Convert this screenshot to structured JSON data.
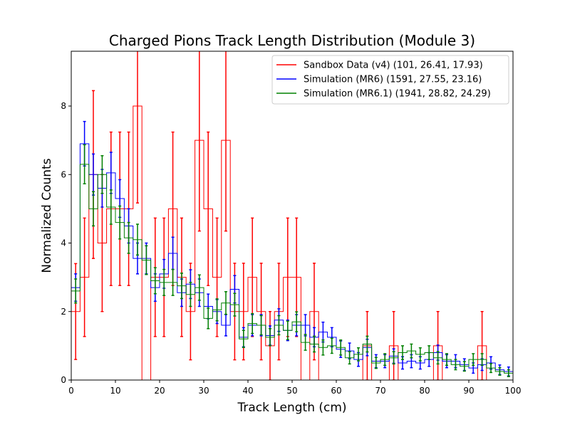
{
  "chart_data": {
    "type": "histogram",
    "title": "Charged Pions Track Length Distribution (Module 3)",
    "xlabel": "Track Length (cm)",
    "ylabel": "Normalized Counts",
    "xlim": [
      0,
      100
    ],
    "ylim": [
      0,
      9.6
    ],
    "x_ticks": [
      "0",
      "10",
      "20",
      "30",
      "40",
      "50",
      "60",
      "70",
      "80",
      "90",
      "100"
    ],
    "y_ticks": [
      "0",
      "2",
      "4",
      "6",
      "8"
    ],
    "grid": false,
    "legend_position": "top-right",
    "bin_edges": [
      0,
      2,
      4,
      6,
      8,
      10,
      12,
      14,
      16,
      18,
      20,
      22,
      24,
      26,
      28,
      30,
      32,
      34,
      36,
      38,
      40,
      42,
      44,
      46,
      48,
      50,
      52,
      54,
      56,
      58,
      60,
      62,
      64,
      66,
      68,
      70,
      72,
      74,
      76,
      78,
      80,
      82,
      84,
      86,
      88,
      90,
      92,
      94,
      96,
      98,
      100
    ],
    "series": [
      {
        "name": "Sandbox Data (v4) (101, 26.41, 17.93)",
        "color": "#ff0000",
        "values": [
          2,
          3,
          6,
          4,
          5,
          5,
          5,
          8,
          0,
          3,
          3,
          5,
          3,
          2,
          7,
          5,
          3,
          7,
          2,
          2,
          3,
          2,
          1,
          2,
          3,
          3,
          0,
          2,
          0,
          0,
          0,
          0,
          0,
          1,
          0,
          0,
          1,
          0,
          0,
          0,
          0,
          1,
          0,
          0,
          0,
          0,
          1,
          0,
          0,
          0
        ],
        "errors": [
          1.4,
          1.73,
          2.45,
          2.0,
          2.24,
          2.24,
          2.24,
          2.83,
          0,
          1.73,
          1.73,
          2.24,
          1.73,
          1.41,
          2.65,
          2.24,
          1.73,
          2.65,
          1.41,
          1.41,
          1.73,
          1.41,
          1.0,
          1.41,
          1.73,
          1.73,
          0,
          1.41,
          0,
          0,
          0,
          0,
          0,
          1.0,
          0,
          0,
          1.0,
          0,
          0,
          0,
          0,
          1.0,
          0,
          0,
          0,
          0,
          1.0,
          0,
          0,
          0
        ]
      },
      {
        "name": "Simulation (MR6) (1591, 27.55, 23.16)",
        "color": "#0000ff",
        "values": [
          2.7,
          6.9,
          6.0,
          5.6,
          6.05,
          5.3,
          4.5,
          3.55,
          3.55,
          2.7,
          3.1,
          3.7,
          2.55,
          2.8,
          2.55,
          2.15,
          2.0,
          1.6,
          2.65,
          1.25,
          1.6,
          1.6,
          1.3,
          1.75,
          1.45,
          1.6,
          1.6,
          1.25,
          1.4,
          1.25,
          0.9,
          0.85,
          0.6,
          0.95,
          0.55,
          0.55,
          0.7,
          0.5,
          0.55,
          0.5,
          0.6,
          0.8,
          0.55,
          0.55,
          0.45,
          0.35,
          0.45,
          0.5,
          0.3,
          0.25
        ],
        "errors": [
          0.4,
          0.65,
          0.6,
          0.55,
          0.6,
          0.55,
          0.5,
          0.45,
          0.45,
          0.4,
          0.42,
          0.47,
          0.4,
          0.42,
          0.4,
          0.36,
          0.35,
          0.31,
          0.4,
          0.28,
          0.31,
          0.31,
          0.28,
          0.33,
          0.3,
          0.31,
          0.31,
          0.28,
          0.29,
          0.28,
          0.24,
          0.23,
          0.2,
          0.24,
          0.19,
          0.19,
          0.21,
          0.18,
          0.19,
          0.18,
          0.2,
          0.22,
          0.19,
          0.19,
          0.17,
          0.15,
          0.17,
          0.18,
          0.14,
          0.13
        ]
      },
      {
        "name": "Simulation (MR6.1) (1941, 28.82, 24.29)",
        "color": "#008000",
        "values": [
          2.6,
          6.3,
          5.0,
          6.0,
          5.05,
          4.6,
          4.15,
          4.1,
          3.5,
          2.9,
          2.85,
          2.85,
          2.75,
          2.5,
          2.7,
          1.8,
          2.05,
          2.25,
          2.2,
          1.2,
          1.65,
          1.6,
          1.25,
          1.6,
          1.45,
          1.7,
          1.1,
          1.05,
          0.95,
          1.0,
          0.95,
          0.65,
          0.75,
          1.05,
          0.5,
          0.6,
          0.65,
          0.8,
          0.85,
          0.75,
          0.8,
          0.65,
          0.6,
          0.45,
          0.4,
          0.6,
          0.6,
          0.35,
          0.25,
          0.2
        ],
        "errors": [
          0.35,
          0.57,
          0.5,
          0.55,
          0.5,
          0.48,
          0.45,
          0.45,
          0.42,
          0.38,
          0.38,
          0.38,
          0.37,
          0.35,
          0.37,
          0.3,
          0.32,
          0.33,
          0.33,
          0.25,
          0.29,
          0.28,
          0.25,
          0.28,
          0.27,
          0.29,
          0.23,
          0.23,
          0.22,
          0.22,
          0.22,
          0.18,
          0.19,
          0.23,
          0.16,
          0.17,
          0.18,
          0.2,
          0.2,
          0.19,
          0.2,
          0.18,
          0.17,
          0.15,
          0.14,
          0.17,
          0.17,
          0.13,
          0.11,
          0.1
        ]
      }
    ]
  }
}
